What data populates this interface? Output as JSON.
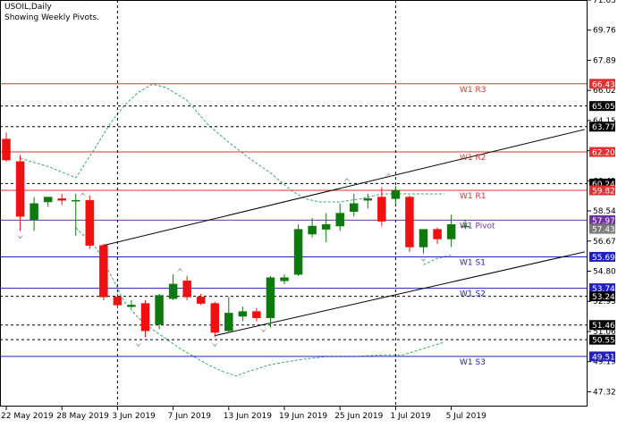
{
  "header": {
    "symbol_line": "USOIL,Daily",
    "indicator_line": "Showing Weekly Pivots."
  },
  "colors": {
    "background": "#ffffff",
    "bull_candle": "#0e7a0e",
    "bear_candle": "#ee1111",
    "resistance_line": "#e03030",
    "support_line": "#2020c0",
    "pivot_line": "#7030a0",
    "bollinger": "#3aa86b",
    "grid_dash": "#000000",
    "trend_line": "#000000",
    "fractal": "#a0a0a0"
  },
  "chart_data": {
    "type": "candlestick",
    "instrument": "USOIL",
    "timeframe": "Daily",
    "ylim": [
      46.4,
      71.63
    ],
    "price_ticks": [
      71.63,
      69.76,
      67.89,
      66.02,
      64.15,
      62.28,
      60.41,
      58.54,
      56.67,
      54.8,
      52.93,
      51.06,
      49.19,
      47.32
    ],
    "x_labels": [
      {
        "label": "22 May 2019",
        "bar": 0
      },
      {
        "label": "28 May 2019",
        "bar": 4
      },
      {
        "label": "3 Jun 2019",
        "bar": 8
      },
      {
        "label": "7 Jun 2019",
        "bar": 12
      },
      {
        "label": "13 Jun 2019",
        "bar": 16
      },
      {
        "label": "19 Jun 2019",
        "bar": 20
      },
      {
        "label": "25 Jun 2019",
        "bar": 24
      },
      {
        "label": "1 Jul 2019",
        "bar": 28
      },
      {
        "label": "5 Jul 2019",
        "bar": 32
      }
    ],
    "candles": [
      {
        "o": 63.0,
        "h": 63.4,
        "l": 61.6,
        "c": 61.7
      },
      {
        "o": 61.6,
        "h": 62.0,
        "l": 57.3,
        "c": 58.2
      },
      {
        "o": 58.0,
        "h": 59.4,
        "l": 57.3,
        "c": 59.0
      },
      {
        "o": 59.1,
        "h": 59.4,
        "l": 58.8,
        "c": 59.4
      },
      {
        "o": 59.3,
        "h": 59.6,
        "l": 58.9,
        "c": 59.2
      },
      {
        "o": 59.2,
        "h": 59.6,
        "l": 57.0,
        "c": 59.2
      },
      {
        "o": 59.2,
        "h": 59.5,
        "l": 56.2,
        "c": 56.4
      },
      {
        "o": 56.4,
        "h": 56.5,
        "l": 53.0,
        "c": 53.2
      },
      {
        "o": 53.2,
        "h": 53.4,
        "l": 52.5,
        "c": 52.7
      },
      {
        "o": 52.6,
        "h": 53.0,
        "l": 52.5,
        "c": 52.7
      },
      {
        "o": 52.8,
        "h": 53.0,
        "l": 50.7,
        "c": 51.1
      },
      {
        "o": 51.5,
        "h": 53.4,
        "l": 51.2,
        "c": 53.3
      },
      {
        "o": 53.1,
        "h": 54.6,
        "l": 53.0,
        "c": 54.0
      },
      {
        "o": 54.2,
        "h": 54.5,
        "l": 53.0,
        "c": 53.2
      },
      {
        "o": 53.2,
        "h": 53.4,
        "l": 52.7,
        "c": 52.8
      },
      {
        "o": 52.8,
        "h": 52.9,
        "l": 50.7,
        "c": 51.0
      },
      {
        "o": 51.1,
        "h": 53.2,
        "l": 51.0,
        "c": 52.2
      },
      {
        "o": 52.0,
        "h": 52.6,
        "l": 51.7,
        "c": 52.3
      },
      {
        "o": 52.3,
        "h": 52.5,
        "l": 51.7,
        "c": 51.9
      },
      {
        "o": 51.9,
        "h": 54.5,
        "l": 51.3,
        "c": 54.4
      },
      {
        "o": 54.2,
        "h": 54.6,
        "l": 54.0,
        "c": 54.4
      },
      {
        "o": 54.6,
        "h": 57.7,
        "l": 54.5,
        "c": 57.4
      },
      {
        "o": 57.1,
        "h": 58.1,
        "l": 56.9,
        "c": 57.6
      },
      {
        "o": 57.4,
        "h": 58.4,
        "l": 56.6,
        "c": 57.7
      },
      {
        "o": 57.6,
        "h": 59.0,
        "l": 57.3,
        "c": 58.4
      },
      {
        "o": 58.5,
        "h": 59.6,
        "l": 58.2,
        "c": 59.0
      },
      {
        "o": 59.2,
        "h": 59.6,
        "l": 58.7,
        "c": 59.3
      },
      {
        "o": 59.4,
        "h": 60.0,
        "l": 57.6,
        "c": 57.9
      },
      {
        "o": 59.3,
        "h": 60.1,
        "l": 58.9,
        "c": 59.8
      },
      {
        "o": 59.4,
        "h": 59.5,
        "l": 56.0,
        "c": 56.3
      },
      {
        "o": 56.3,
        "h": 57.4,
        "l": 55.9,
        "c": 57.4
      },
      {
        "o": 57.4,
        "h": 57.5,
        "l": 56.5,
        "c": 56.8
      },
      {
        "o": 56.8,
        "h": 58.3,
        "l": 56.3,
        "c": 57.7
      },
      {
        "o": 57.6,
        "h": 58.0,
        "l": 57.4,
        "c": 57.6
      }
    ],
    "pivot_levels": [
      {
        "name": "W1 R3",
        "value": 66.43,
        "kind": "resistance"
      },
      {
        "name": "W1 R2",
        "value": 62.2,
        "kind": "resistance"
      },
      {
        "name": "W1 R1",
        "value": 59.82,
        "kind": "resistance"
      },
      {
        "name": "W1 Pivot",
        "value": 57.97,
        "kind": "pivot"
      },
      {
        "name": "W1 S1",
        "value": 55.69,
        "kind": "support"
      },
      {
        "name": "W1 S2",
        "value": 53.74,
        "kind": "support"
      },
      {
        "name": "W1 S3",
        "value": 49.51,
        "kind": "support"
      }
    ],
    "dashed_levels": [
      65.05,
      63.77,
      60.24,
      53.24,
      51.46,
      50.55
    ],
    "axis_price_labels": [
      {
        "value": 66.43,
        "text": "66.43",
        "bg": "#e03030"
      },
      {
        "value": 65.05,
        "text": "65.05",
        "bg": "#000000"
      },
      {
        "value": 63.77,
        "text": "63.77",
        "bg": "#000000"
      },
      {
        "value": 62.2,
        "text": "62.20",
        "bg": "#e03030"
      },
      {
        "value": 60.24,
        "text": "60.24",
        "bg": "#000000"
      },
      {
        "value": 59.82,
        "text": "59.82",
        "bg": "#e03030"
      },
      {
        "value": 57.97,
        "text": "57.97",
        "bg": "#7030a0"
      },
      {
        "value": 57.43,
        "text": "57.43",
        "bg": "#7a7a7a"
      },
      {
        "value": 55.69,
        "text": "55.69",
        "bg": "#2020c0"
      },
      {
        "value": 53.74,
        "text": "53.74",
        "bg": "#2020c0"
      },
      {
        "value": 53.24,
        "text": "53.24",
        "bg": "#000000"
      },
      {
        "value": 51.46,
        "text": "51.46",
        "bg": "#000000"
      },
      {
        "value": 50.55,
        "text": "50.55",
        "bg": "#000000"
      },
      {
        "value": 49.51,
        "text": "49.51",
        "bg": "#2020c0"
      }
    ],
    "vertical_dividers_at_bar": [
      8,
      28
    ],
    "trend_lines": [
      {
        "from": {
          "bar": 7,
          "price": 56.4
        },
        "to": {
          "bar": 41.6,
          "price": 63.6
        }
      },
      {
        "from": {
          "bar": 15,
          "price": 50.8
        },
        "to": {
          "bar": 41.6,
          "price": 56.0
        }
      }
    ],
    "bollinger_upper": [
      {
        "bar": 1,
        "price": 61.8
      },
      {
        "bar": 3,
        "price": 61.3
      },
      {
        "bar": 5,
        "price": 60.6
      },
      {
        "bar": 6.5,
        "price": 62.6
      },
      {
        "bar": 7.5,
        "price": 64.0
      },
      {
        "bar": 8.5,
        "price": 65.1
      },
      {
        "bar": 9.5,
        "price": 65.9
      },
      {
        "bar": 10.5,
        "price": 66.4
      },
      {
        "bar": 11.5,
        "price": 66.2
      },
      {
        "bar": 13,
        "price": 65.4
      },
      {
        "bar": 14.5,
        "price": 63.9
      },
      {
        "bar": 16,
        "price": 62.8
      },
      {
        "bar": 17.5,
        "price": 61.8
      },
      {
        "bar": 19,
        "price": 60.9
      },
      {
        "bar": 20.5,
        "price": 59.8
      },
      {
        "bar": 21.5,
        "price": 59.3
      },
      {
        "bar": 22.5,
        "price": 59.1
      },
      {
        "bar": 24,
        "price": 59.1
      },
      {
        "bar": 25.5,
        "price": 59.3
      },
      {
        "bar": 27,
        "price": 59.6
      },
      {
        "bar": 28.5,
        "price": 59.6
      },
      {
        "bar": 30,
        "price": 59.6
      },
      {
        "bar": 31.5,
        "price": 59.6
      }
    ],
    "bollinger_lower": [
      {
        "bar": 5,
        "price": 57.5
      },
      {
        "bar": 6.5,
        "price": 56.2
      },
      {
        "bar": 7.5,
        "price": 54.6
      },
      {
        "bar": 8.5,
        "price": 52.9
      },
      {
        "bar": 9.5,
        "price": 51.9
      },
      {
        "bar": 10.5,
        "price": 51.2
      },
      {
        "bar": 11.5,
        "price": 50.6
      },
      {
        "bar": 12.5,
        "price": 50.0
      },
      {
        "bar": 13.5,
        "price": 49.5
      },
      {
        "bar": 14.5,
        "price": 49.0
      },
      {
        "bar": 15.5,
        "price": 48.6
      },
      {
        "bar": 16.5,
        "price": 48.3
      },
      {
        "bar": 17.5,
        "price": 48.6
      },
      {
        "bar": 19,
        "price": 49.0
      },
      {
        "bar": 21,
        "price": 49.3
      },
      {
        "bar": 23,
        "price": 49.5
      },
      {
        "bar": 25,
        "price": 49.5
      },
      {
        "bar": 27,
        "price": 49.6
      },
      {
        "bar": 28.5,
        "price": 49.6
      },
      {
        "bar": 30,
        "price": 50.0
      },
      {
        "bar": 31.5,
        "price": 50.4
      }
    ],
    "bollinger_mid": [
      {
        "bar": 30,
        "price": 55.2
      },
      {
        "bar": 31,
        "price": 55.6
      },
      {
        "bar": 32,
        "price": 55.8
      }
    ],
    "fractals": [
      {
        "bar": 1,
        "price": 56.8,
        "dir": "down"
      },
      {
        "bar": 5.5,
        "price": 59.7,
        "dir": "up"
      },
      {
        "bar": 9.5,
        "price": 50.1,
        "dir": "down"
      },
      {
        "bar": 12.5,
        "price": 55.0,
        "dir": "up"
      },
      {
        "bar": 15,
        "price": 50.1,
        "dir": "down"
      },
      {
        "bar": 18.5,
        "price": 51.0,
        "dir": "down"
      },
      {
        "bar": 24.5,
        "price": 60.6,
        "dir": "up"
      },
      {
        "bar": 27.5,
        "price": 60.9,
        "dir": "up"
      },
      {
        "bar": 30,
        "price": 55.4,
        "dir": "down"
      }
    ]
  }
}
